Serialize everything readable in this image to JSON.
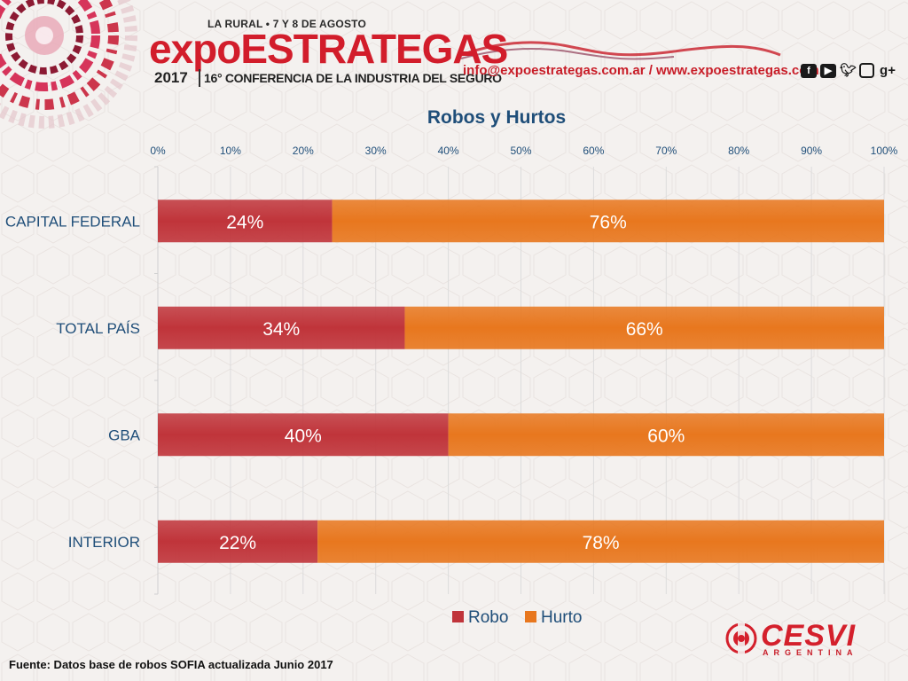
{
  "header": {
    "event_line": "LA RURAL • 7 Y 8 DE AGOSTO",
    "brand_lower": "expo",
    "brand_upper": "ESTRATEGAS",
    "year": "2017",
    "subtitle": "16° CONFERENCIA DE LA INDUSTRIA DEL SEGURO",
    "contact": "info@expoestrategas.com.ar / www.expoestrategas.com.ar",
    "social_icons": [
      "facebook-icon",
      "youtube-icon",
      "twitter-icon",
      "instagram-icon",
      "google-plus-icon"
    ]
  },
  "chart_data": {
    "type": "bar",
    "orientation": "horizontal",
    "stacked": true,
    "title": "Robos y Hurtos",
    "categories": [
      "CAPITAL FEDERAL",
      "TOTAL PAÍS",
      "GBA",
      "INTERIOR"
    ],
    "series": [
      {
        "name": "Robo",
        "values": [
          24,
          34,
          40,
          22
        ],
        "color": "#c0343a"
      },
      {
        "name": "Hurto",
        "values": [
          76,
          66,
          60,
          78
        ],
        "color": "#e8771e"
      }
    ],
    "x_ticks": [
      "0%",
      "10%",
      "20%",
      "30%",
      "40%",
      "50%",
      "60%",
      "70%",
      "80%",
      "90%",
      "100%"
    ],
    "xlim": [
      0,
      100
    ],
    "axis_position": "top",
    "grid": true,
    "legend": "bottom",
    "data_labels": true,
    "title_color": "#1f4e79"
  },
  "footer": {
    "source": "Fuente: Datos base de robos SOFIA actualizada Junio 2017",
    "logo_text": "CESVI",
    "logo_sub": "ARGENTINA"
  }
}
